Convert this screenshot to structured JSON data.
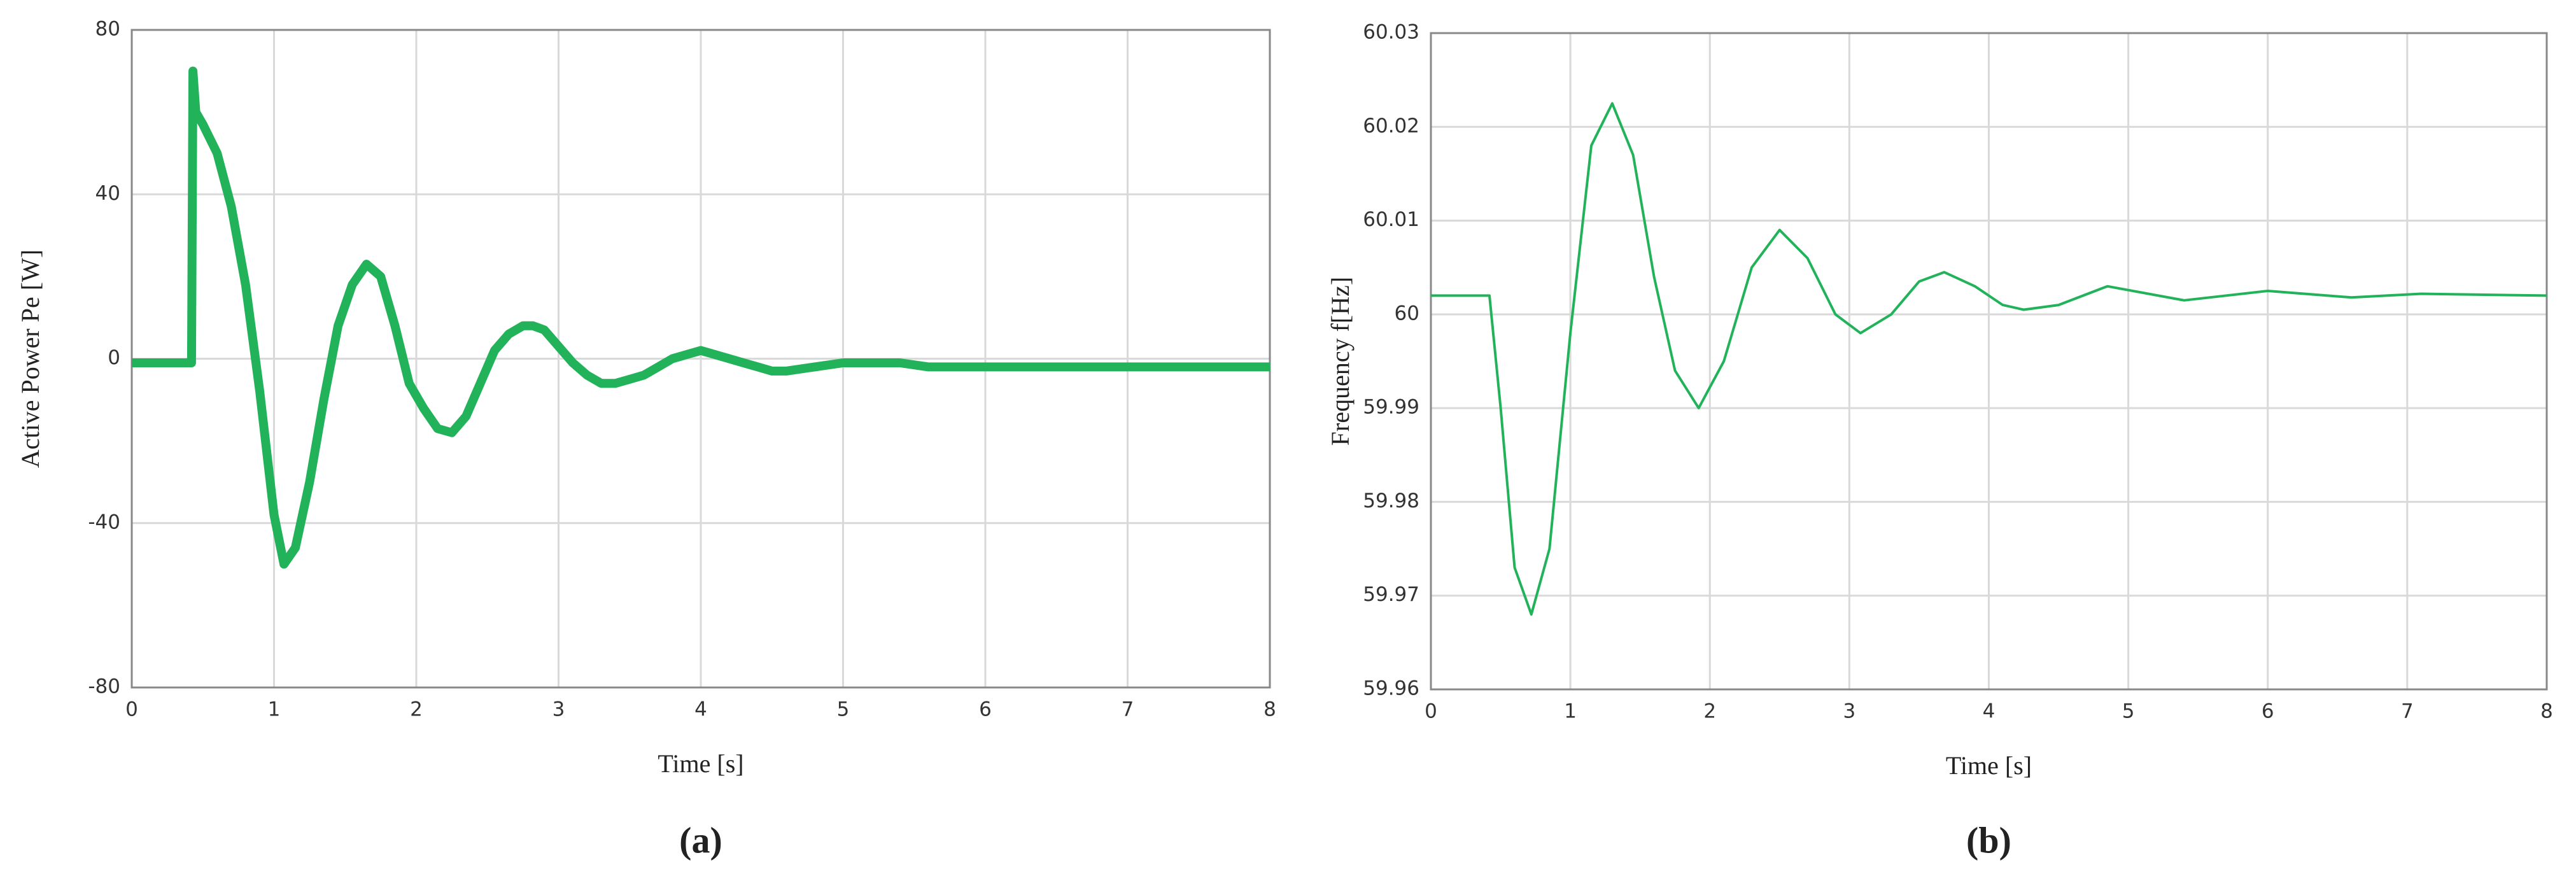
{
  "chart_data": [
    {
      "type": "line",
      "caption": "(a)",
      "xlabel": "Time [s]",
      "ylabel": "Active Power Pe [W]",
      "color": "#22b35a",
      "grid": true,
      "xlim": [
        0,
        8
      ],
      "ylim": [
        -80,
        80
      ],
      "xticks": [
        0,
        1,
        2,
        3,
        4,
        5,
        6,
        7,
        8
      ],
      "yticks": [
        -80,
        -40,
        0,
        40,
        80
      ],
      "x": [
        0,
        0.2,
        0.4,
        0.42,
        0.43,
        0.45,
        0.5,
        0.6,
        0.7,
        0.8,
        0.9,
        1.0,
        1.07,
        1.15,
        1.25,
        1.35,
        1.45,
        1.55,
        1.65,
        1.75,
        1.85,
        1.95,
        2.05,
        2.15,
        2.25,
        2.35,
        2.45,
        2.55,
        2.65,
        2.75,
        2.82,
        2.9,
        3.0,
        3.1,
        3.2,
        3.3,
        3.4,
        3.5,
        3.6,
        3.7,
        3.8,
        3.9,
        4.0,
        4.1,
        4.2,
        4.3,
        4.4,
        4.5,
        4.6,
        4.8,
        5.0,
        5.2,
        5.4,
        5.6,
        5.8,
        6.0,
        6.5,
        7.0,
        7.5,
        8.0
      ],
      "values": [
        -1,
        -1,
        -1,
        -1,
        70,
        60,
        57,
        50,
        37,
        18,
        -8,
        -38,
        -50,
        -46,
        -30,
        -10,
        8,
        18,
        23,
        20,
        8,
        -6,
        -12,
        -17,
        -18,
        -14,
        -6,
        2,
        6,
        8,
        8,
        7,
        3,
        -1,
        -4,
        -6,
        -6,
        -5,
        -4,
        -2,
        0,
        1,
        2,
        1,
        0,
        -1,
        -2,
        -3,
        -3,
        -2,
        -1,
        -1,
        -1,
        -2,
        -2,
        -2,
        -2,
        -2,
        -2,
        -2
      ]
    },
    {
      "type": "line",
      "caption": "(b)",
      "xlabel": "Time [s]",
      "ylabel": "Frequency f[Hz]",
      "color": "#22b35a",
      "grid": true,
      "xlim": [
        0,
        8
      ],
      "ylim": [
        59.96,
        60.03
      ],
      "xticks": [
        0,
        1,
        2,
        3,
        4,
        5,
        6,
        7,
        8
      ],
      "yticks": [
        59.96,
        59.97,
        59.98,
        59.99,
        60,
        60.01,
        60.02,
        60.03
      ],
      "x": [
        0,
        0.42,
        0.5,
        0.6,
        0.72,
        0.85,
        1.0,
        1.15,
        1.3,
        1.45,
        1.6,
        1.75,
        1.92,
        2.1,
        2.3,
        2.5,
        2.7,
        2.9,
        3.08,
        3.3,
        3.5,
        3.68,
        3.9,
        4.1,
        4.25,
        4.5,
        4.85,
        5.4,
        6.0,
        6.6,
        7.1,
        8
      ],
      "values": [
        60.002,
        60.002,
        59.99,
        59.973,
        59.968,
        59.975,
        59.998,
        60.018,
        60.0225,
        60.017,
        60.004,
        59.994,
        59.99,
        59.995,
        60.005,
        60.009,
        60.006,
        60,
        59.998,
        60,
        60.0035,
        60.0045,
        60.003,
        60.001,
        60.0005,
        60.001,
        60.003,
        60.0015,
        60.0025,
        60.0018,
        60.0022,
        60.002
      ]
    }
  ]
}
